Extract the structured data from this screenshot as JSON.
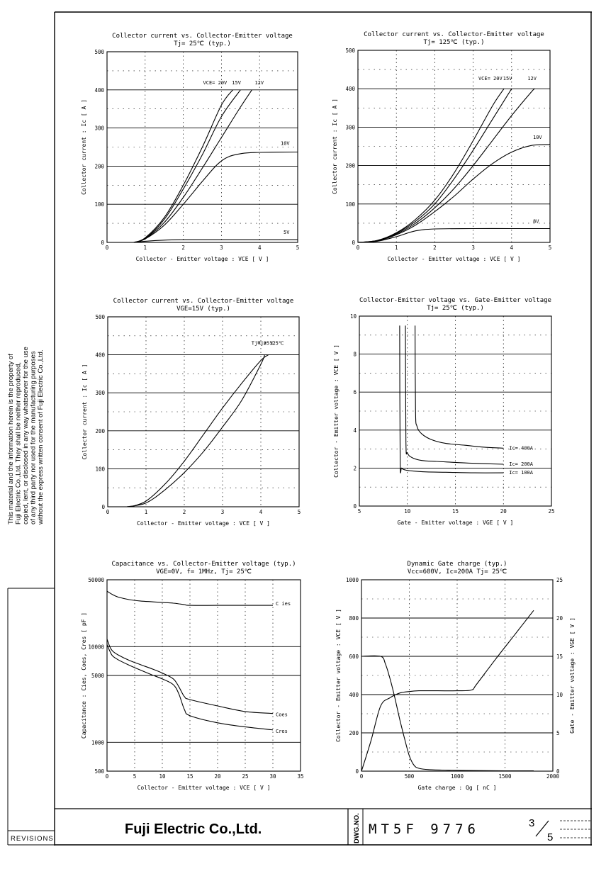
{
  "side_note": "This material and the information herein is the property of Fuji Electric Co.,Ltd. They shall be neither reproduced, copied, lent, or disclosed in any way whatsoever for the use of any third party nor used for the manufacturing purposes without the express written consent of Fuji Electric Co.,Ltd.",
  "title_block": {
    "revisions_label": "REVISIONS",
    "company": "Fuji Electric Co.,Ltd.",
    "dwg_no_label": "DWG.NO.",
    "dwg_no": "MT5F 9776",
    "page": "3",
    "pages": "5"
  },
  "chart_data": [
    {
      "type": "line",
      "title": "Collector current  vs.  Collector-Emitter voltage",
      "subtitle": "Tj= 25℃      (typ.)",
      "xlabel": "Collector - Emitter voltage  :  VCE  [ V ]",
      "ylabel": "Collector current  :  Ic  [ A ]",
      "xlim": [
        0,
        5
      ],
      "ylim": [
        0,
        500
      ],
      "xticks": [
        "0",
        "1",
        "2",
        "3",
        "4",
        "5"
      ],
      "yticks": [
        "0",
        "100",
        "200",
        "300",
        "400",
        "500"
      ],
      "grid": true,
      "series": [
        {
          "name": "VCE= 20V",
          "x": [
            0.7,
            1.0,
            1.5,
            2.0,
            2.5,
            3.0,
            3.3
          ],
          "y": [
            0,
            12,
            65,
            150,
            250,
            360,
            400
          ]
        },
        {
          "name": "15V",
          "x": [
            0.7,
            1.0,
            1.5,
            2.0,
            2.5,
            3.0,
            3.5
          ],
          "y": [
            0,
            10,
            60,
            140,
            230,
            330,
            400
          ]
        },
        {
          "name": "12V",
          "x": [
            0.7,
            1.0,
            1.5,
            2.0,
            2.5,
            3.0,
            3.5,
            3.8
          ],
          "y": [
            0,
            10,
            52,
            118,
            195,
            275,
            355,
            400
          ]
        },
        {
          "name": "10V",
          "x": [
            0.7,
            1.0,
            1.5,
            2.0,
            2.5,
            2.9,
            3.2,
            3.6,
            4.0,
            5.0
          ],
          "y": [
            0,
            9,
            45,
            100,
            160,
            205,
            225,
            234,
            236,
            237
          ]
        },
        {
          "name": "5V",
          "x": [
            0.7,
            1.0,
            1.5,
            2.0,
            3.0,
            4.0,
            5.0
          ],
          "y": [
            0,
            3,
            6,
            7,
            7,
            7,
            7
          ]
        }
      ]
    },
    {
      "type": "line",
      "title": "Collector current  vs.  Collector-Emitter voltage",
      "subtitle": "Tj= 125℃      (typ.)",
      "xlabel": "Collector - Emitter voltage  :  VCE  [ V ]",
      "ylabel": "Collector current  :  Ic  [ A ]",
      "xlim": [
        0,
        5
      ],
      "ylim": [
        0,
        500
      ],
      "xticks": [
        "0",
        "1",
        "2",
        "3",
        "4",
        "5"
      ],
      "yticks": [
        "0",
        "100",
        "200",
        "300",
        "400",
        "500"
      ],
      "grid": true,
      "series": [
        {
          "name": "VCE= 20V",
          "x": [
            0,
            0.5,
            1.0,
            1.5,
            2.0,
            2.5,
            3.0,
            3.5,
            3.8
          ],
          "y": [
            0,
            5,
            25,
            60,
            110,
            180,
            265,
            355,
            400
          ]
        },
        {
          "name": "15V",
          "x": [
            0,
            0.5,
            1.0,
            1.5,
            2.0,
            2.5,
            3.0,
            3.5,
            4.0
          ],
          "y": [
            0,
            5,
            24,
            55,
            100,
            165,
            240,
            320,
            400
          ]
        },
        {
          "name": "12V",
          "x": [
            0,
            0.5,
            1.0,
            1.5,
            2.0,
            2.5,
            3.0,
            3.5,
            4.0,
            4.5,
            4.6
          ],
          "y": [
            0,
            4,
            22,
            50,
            90,
            140,
            200,
            265,
            330,
            390,
            400
          ]
        },
        {
          "name": "10V",
          "x": [
            0,
            0.5,
            1.0,
            1.5,
            2.0,
            2.5,
            3.0,
            3.5,
            4.0,
            4.5,
            5.0
          ],
          "y": [
            0,
            4,
            20,
            45,
            80,
            120,
            165,
            205,
            235,
            252,
            255
          ]
        },
        {
          "name": "8V",
          "x": [
            0,
            0.5,
            1.0,
            1.5,
            2.0,
            3.0,
            4.0,
            5.0
          ],
          "y": [
            0,
            3,
            15,
            30,
            35,
            36,
            36,
            36
          ]
        }
      ]
    },
    {
      "type": "line",
      "title": "Collector current  vs.  Collector-Emitter voltage",
      "subtitle": "VGE=15V  (typ.)",
      "xlabel": "Collector - Emitter voltage  :  VCE  [ V ]",
      "ylabel": "Collector current  :  Ic  [ A ]",
      "xlim": [
        0,
        5
      ],
      "ylim": [
        0,
        500
      ],
      "xticks": [
        "0",
        "1",
        "2",
        "3",
        "4",
        "5"
      ],
      "yticks": [
        "0",
        "100",
        "200",
        "300",
        "400",
        "500"
      ],
      "grid": true,
      "series": [
        {
          "name": "Tj= 25℃",
          "x": [
            0.6,
            1.0,
            1.5,
            2.0,
            2.5,
            3.0,
            3.5,
            4.0,
            4.2
          ],
          "y": [
            0,
            15,
            60,
            120,
            190,
            260,
            325,
            385,
            400
          ]
        },
        {
          "name": "Tj= 125℃",
          "x": [
            0.5,
            1.0,
            1.5,
            2.0,
            2.5,
            3.0,
            3.5,
            4.0,
            4.1
          ],
          "y": [
            0,
            10,
            45,
            90,
            145,
            210,
            280,
            375,
            400
          ]
        }
      ]
    },
    {
      "type": "line",
      "title": "Collector-Emitter voltage  vs.  Gate-Emitter voltage",
      "subtitle": "Tj= 25℃      (typ.)",
      "xlabel": "Gate - Emitter voltage  :  VGE  [ V ]",
      "ylabel": "Collector - Emitter voltage  :  VCE  [ V ]",
      "xlim": [
        5,
        25
      ],
      "ylim": [
        0,
        10
      ],
      "xticks": [
        "5",
        "10",
        "15",
        "20",
        "25"
      ],
      "yticks": [
        "0",
        "2",
        "4",
        "6",
        "8",
        "10"
      ],
      "grid": true,
      "series": [
        {
          "name": "Ic= 400A",
          "x": [
            10.8,
            10.85,
            11.0,
            11.5,
            12.5,
            14,
            16,
            18,
            20
          ],
          "y": [
            9.5,
            5.0,
            4.2,
            3.8,
            3.5,
            3.3,
            3.2,
            3.1,
            3.05
          ]
        },
        {
          "name": "Ic= 200A",
          "x": [
            9.8,
            9.85,
            10.0,
            10.5,
            11.5,
            13,
            15,
            17,
            20
          ],
          "y": [
            9.5,
            3.4,
            2.8,
            2.55,
            2.4,
            2.35,
            2.3,
            2.25,
            2.2
          ]
        },
        {
          "name": "Ic= 100A",
          "x": [
            9.2,
            9.25,
            9.4,
            9.8,
            10.5,
            12,
            14,
            17,
            20
          ],
          "y": [
            9.5,
            2.4,
            2.0,
            1.9,
            1.85,
            1.8,
            1.78,
            1.75,
            1.75
          ]
        }
      ]
    },
    {
      "type": "line",
      "title": "Capacitance  vs.  Collector-Emitter voltage   (typ.)",
      "subtitle": "VGE=0V,   f= 1MHz,   Tj= 25℃",
      "xlabel": "Collector - Emitter voltage  :  VCE  [ V ]",
      "ylabel": "Capacitance  :  Cies, Coes, Cres  [ pF ]",
      "xlim": [
        0,
        35
      ],
      "ylim": [
        500,
        50000
      ],
      "yscale": "log",
      "xticks": [
        "0",
        "5",
        "10",
        "15",
        "20",
        "25",
        "30",
        "35"
      ],
      "yticks": [
        "500",
        "1000",
        "5000",
        "10000",
        "50000"
      ],
      "grid": true,
      "series": [
        {
          "name": "C ies",
          "x": [
            0,
            1,
            2,
            4,
            6,
            8,
            10,
            12,
            13,
            14,
            15,
            20,
            25,
            30
          ],
          "y": [
            38000,
            35000,
            33000,
            31000,
            30000,
            29500,
            29000,
            28500,
            28000,
            27500,
            27000,
            27000,
            27000,
            27000
          ]
        },
        {
          "name": "Coes",
          "x": [
            0,
            0.5,
            1,
            2,
            4,
            6,
            8,
            10,
            12,
            13,
            14,
            15,
            20,
            25,
            30
          ],
          "y": [
            12000,
            10000,
            9000,
            8200,
            7200,
            6500,
            5900,
            5300,
            4600,
            3800,
            3000,
            2800,
            2400,
            2100,
            2000
          ]
        },
        {
          "name": "Cres",
          "x": [
            0,
            0.5,
            1,
            2,
            4,
            6,
            8,
            10,
            12,
            13,
            14,
            15,
            20,
            25,
            30
          ],
          "y": [
            10500,
            9000,
            8000,
            7300,
            6400,
            5700,
            5100,
            4600,
            4000,
            3200,
            2200,
            1900,
            1600,
            1450,
            1350
          ]
        }
      ]
    },
    {
      "type": "line",
      "title": "Dynamic Gate charge   (typ.)",
      "subtitle": "Vcc=600V,  Ic=200A  Tj= 25℃",
      "xlabel": "Gate charge  :  Qg  [ nC ]",
      "ylabel": "Collector - Emitter voltage  :  VCE  [ V ]",
      "y2label": "Gate - Emitter voltage  :  VGE  [ V ]",
      "xlim": [
        0,
        2000
      ],
      "ylim": [
        0,
        1000
      ],
      "y2lim": [
        0,
        25
      ],
      "xticks": [
        "0",
        "500",
        "1000",
        "1500",
        "2000"
      ],
      "yticks": [
        "0",
        "200",
        "400",
        "600",
        "800",
        "1000"
      ],
      "y2ticks": [
        "0",
        "5",
        "10",
        "15",
        "20",
        "25"
      ],
      "grid": true,
      "series": [
        {
          "name": "VCE",
          "axis": "left",
          "x": [
            0,
            200,
            250,
            300,
            350,
            400,
            450,
            500,
            550,
            600,
            700,
            900,
            1200,
            1500,
            1800
          ],
          "y": [
            600,
            600,
            560,
            480,
            380,
            270,
            170,
            80,
            30,
            15,
            8,
            5,
            3,
            2,
            2
          ]
        },
        {
          "name": "VGE",
          "axis": "right",
          "x": [
            0,
            100,
            200,
            300,
            400,
            500,
            600,
            800,
            1000,
            1150,
            1200,
            1400,
            1600,
            1800
          ],
          "y": [
            0,
            4,
            8.5,
            9.6,
            10.2,
            10.4,
            10.5,
            10.5,
            10.5,
            10.6,
            11.3,
            14.6,
            17.8,
            21.0
          ]
        }
      ]
    }
  ]
}
